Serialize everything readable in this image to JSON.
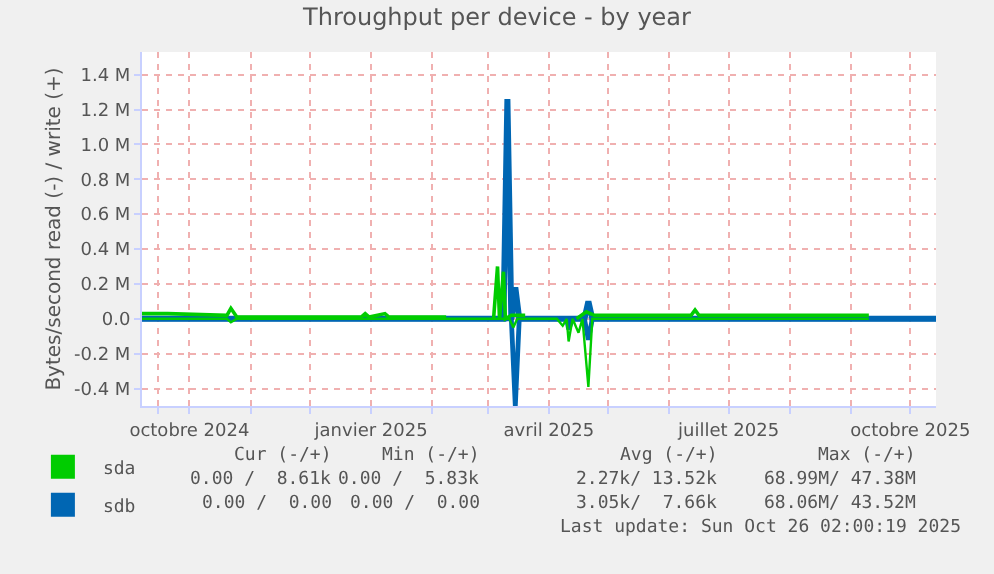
{
  "chart_data": {
    "type": "line",
    "title": "Throughput per device - by year",
    "ylabel": "Bytes/second read (-) / write (+)",
    "xlim": [
      "2024-09-07",
      "2025-10-14"
    ],
    "xticks": [
      {
        "value": "2024-09-15",
        "label": null
      },
      {
        "value": "2024-10-01",
        "label": "octobre 2024"
      },
      {
        "value": "2024-11-01",
        "label": null
      },
      {
        "value": "2024-12-01",
        "label": null
      },
      {
        "value": "2025-01-01",
        "label": "janvier 2025"
      },
      {
        "value": "2025-02-01",
        "label": null
      },
      {
        "value": "2025-03-01",
        "label": null
      },
      {
        "value": "2025-04-01",
        "label": "avril 2025"
      },
      {
        "value": "2025-05-01",
        "label": null
      },
      {
        "value": "2025-06-01",
        "label": null
      },
      {
        "value": "2025-07-01",
        "label": "juillet 2025"
      },
      {
        "value": "2025-08-01",
        "label": null
      },
      {
        "value": "2025-09-01",
        "label": null
      },
      {
        "value": "2025-10-01",
        "label": "octobre 2025"
      }
    ],
    "ylim": [
      -0.5,
      1.53
    ],
    "yticks": [
      {
        "value": -0.4,
        "label": "-0.4 M"
      },
      {
        "value": -0.2,
        "label": "-0.2 M"
      },
      {
        "value": 0,
        "label": "0.0"
      },
      {
        "value": 0.2,
        "label": "0.2 M"
      },
      {
        "value": 0.4,
        "label": "0.4 M"
      },
      {
        "value": 0.6,
        "label": "0.6 M"
      },
      {
        "value": 0.8,
        "label": "0.8 M"
      },
      {
        "value": 1.0,
        "label": "1.0 M"
      },
      {
        "value": 1.2,
        "label": "1.2 M"
      },
      {
        "value": 1.4,
        "label": "1.4 M"
      }
    ],
    "grid": true,
    "legend": "bottom left",
    "marker": "none",
    "line_style": "solid",
    "ref_lines": [
      {
        "axis": "y",
        "value": 0,
        "color": "#000000"
      }
    ],
    "series": [
      {
        "color": "#0066b3",
        "x": [
          "2024-09-07",
          "2025-03-09",
          "2025-03-11",
          "2025-03-13",
          "2025-03-15",
          "2025-03-17",
          "2025-04-19",
          "2025-04-21",
          "2025-04-23",
          "2025-10-14"
        ],
        "values": [
          0,
          0,
          1.26,
          0,
          0.18,
          0,
          0,
          0.1,
          0,
          0
        ]
      },
      {
        "color": "#0066b3",
        "x": [
          "2024-09-07",
          "2025-03-13",
          "2025-03-15",
          "2025-03-17",
          "2025-04-10",
          "2025-04-11",
          "2025-04-13",
          "2025-04-19",
          "2025-04-21",
          "2025-04-23",
          "2025-10-14"
        ],
        "values": [
          0,
          0,
          -0.5,
          0,
          0,
          -0.06,
          0,
          0,
          -0.12,
          0,
          0
        ]
      },
      {
        "color": "#00cc00",
        "x": [
          "2024-09-07",
          "2024-09-20",
          "2024-10-20",
          "2024-10-22",
          "2024-10-25",
          "2024-12-27",
          "2024-12-29",
          "2024-12-31",
          "2025-01-08",
          "2025-01-10",
          "2025-02-08",
          "2025-02-10",
          "2025-03-04",
          "2025-03-06",
          "2025-03-07",
          "2025-03-09",
          "2025-03-10",
          "2025-03-13",
          "2025-03-20",
          "2025-03-22",
          "2025-04-15",
          "2025-04-20",
          "2025-04-24",
          "2025-05-10",
          "2025-06-12",
          "2025-06-14",
          "2025-06-16",
          "2025-09-10"
        ],
        "values": [
          0.03,
          0.03,
          0.02,
          0.06,
          0.01,
          0.01,
          0.03,
          0.01,
          0.03,
          0.01,
          0.01,
          null,
          0,
          0.3,
          0,
          0.27,
          0,
          0.02,
          0.02,
          null,
          0,
          0.04,
          0.02,
          0.02,
          0.02,
          0.05,
          0.02,
          0.02
        ]
      },
      {
        "color": "#00cc00",
        "x": [
          "2024-09-07",
          "2024-10-20",
          "2024-10-22",
          "2024-10-25",
          "2025-03-12",
          "2025-03-14",
          "2025-03-16",
          "2025-04-05",
          "2025-04-08",
          "2025-04-10",
          "2025-04-11",
          "2025-04-13",
          "2025-04-16",
          "2025-04-18",
          "2025-04-21",
          "2025-04-23",
          "2025-09-10"
        ],
        "values": [
          0,
          0,
          -0.02,
          0,
          0,
          -0.05,
          0,
          0,
          -0.04,
          0,
          -0.13,
          0,
          -0.08,
          0,
          -0.39,
          0,
          0
        ]
      },
      {
        "name": "sda",
        "color": "#00cc00"
      },
      {
        "name": "sdb",
        "color": "#0066b3"
      }
    ],
    "annotations": [
      "Cur (-/+)",
      "Min (-/+)",
      "Avg (-/+)",
      "Max (-/+)",
      "0.00 /  8.61k",
      "0.00 /  5.83k",
      "2.27k/ 13.52k",
      "68.99M/ 47.38M",
      "0.00 /  0.00",
      "0.00 /  0.00",
      "3.05k/  7.66k",
      "68.06M/ 43.52M",
      "Last update: Sun Oct 26 02:00:19 2025"
    ]
  }
}
